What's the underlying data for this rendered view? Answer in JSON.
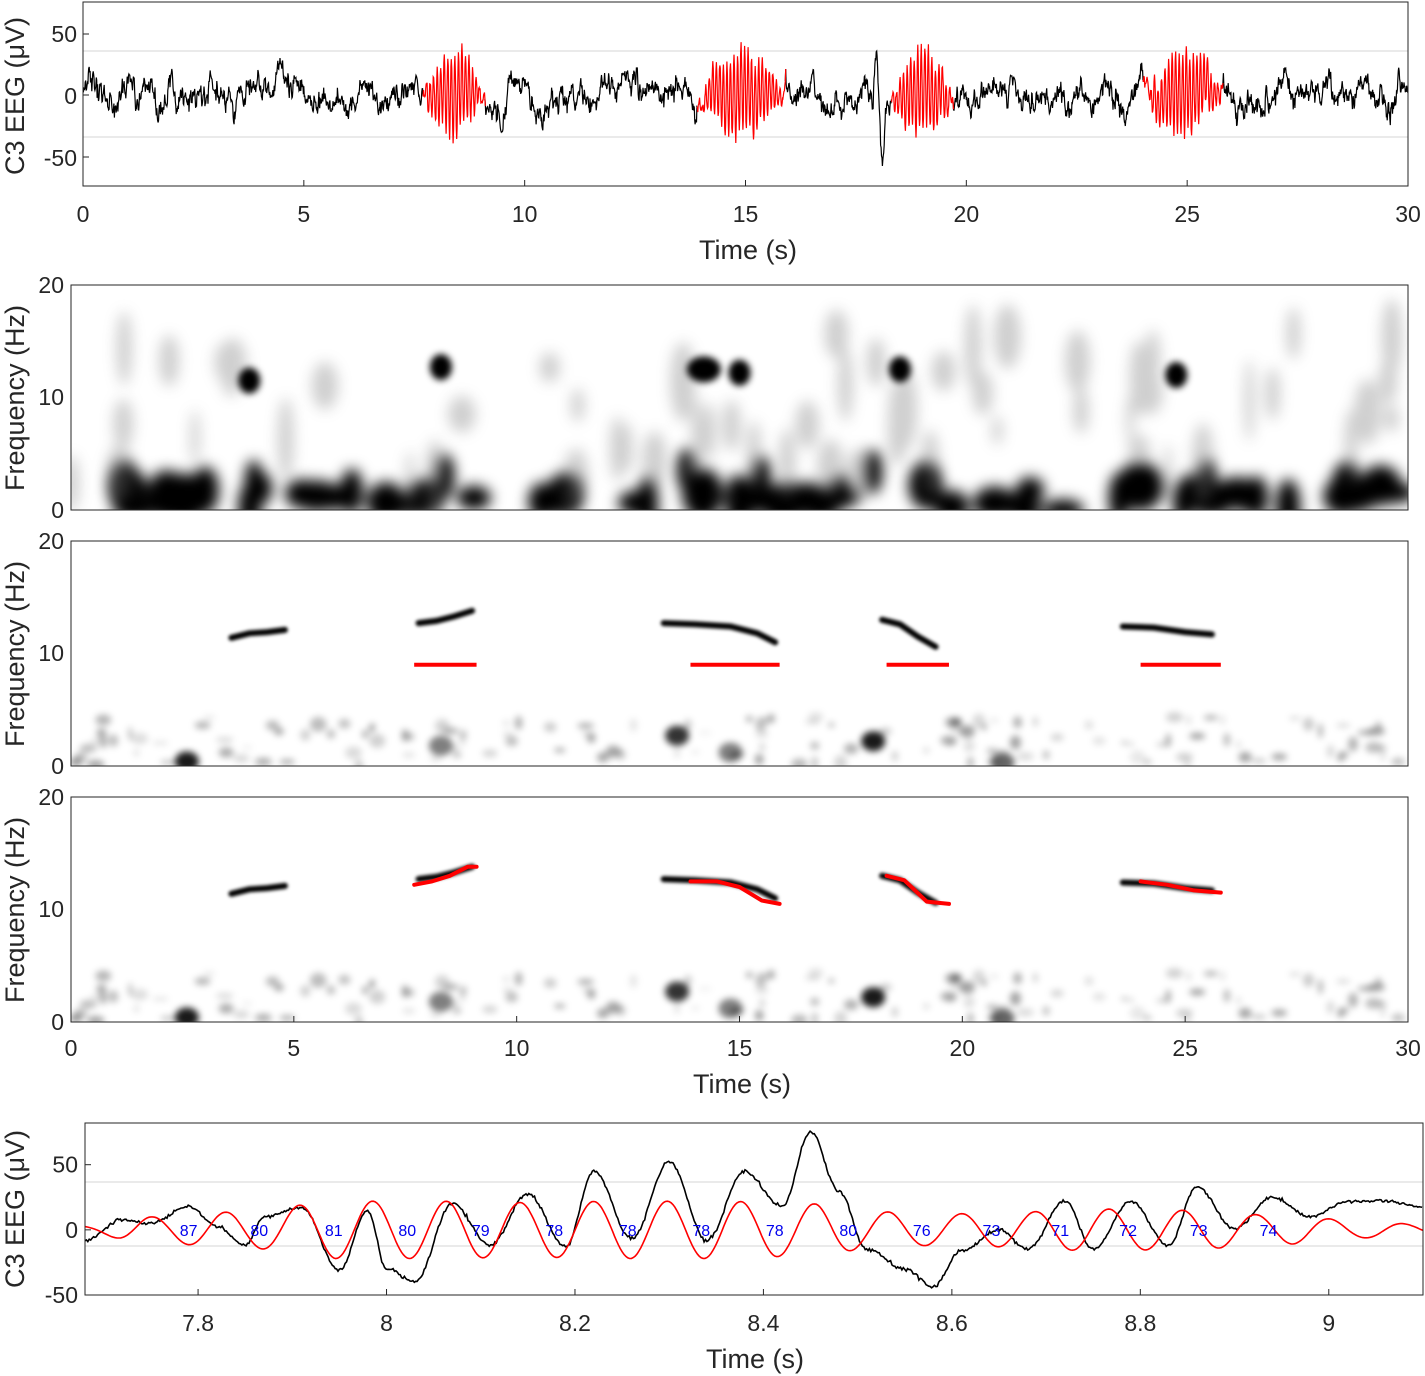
{
  "chart_data": [
    {
      "type": "line",
      "panel": "eeg-30s",
      "ylabel": "C3 EEG (μV)",
      "xlabel": "Time (s)",
      "xlim": [
        0,
        30
      ],
      "ylim": [
        -75,
        75
      ],
      "xticks": [
        "0",
        "5",
        "10",
        "15",
        "20",
        "25",
        "30"
      ],
      "yticks": [
        "50",
        "0",
        "-50"
      ],
      "threshold_lines": [
        35,
        -35
      ],
      "grid": false,
      "series": [
        {
          "color": "#000000",
          "segments": [
            [
              0,
              7.7
            ],
            [
              9.1,
              13.9
            ],
            [
              15.9,
              18.3
            ],
            [
              19.7,
              24.0
            ],
            [
              25.8,
              30
            ]
          ]
        },
        {
          "color": "#ff0000",
          "segments": [
            [
              7.7,
              9.1
            ],
            [
              13.9,
              15.9
            ],
            [
              18.3,
              19.7
            ],
            [
              24.0,
              25.8
            ]
          ]
        }
      ]
    },
    {
      "type": "heatmap",
      "panel": "spectrogram",
      "ylabel": "Frequency (Hz)",
      "xlim": [
        0,
        30
      ],
      "ylim": [
        0,
        20
      ],
      "yticks": [
        "20",
        "10",
        "0"
      ],
      "colormap": "gray-inverted",
      "blobs": [
        {
          "t": 4.0,
          "f": 11.5
        },
        {
          "t": 8.3,
          "f": 12.7
        },
        {
          "t": 14.2,
          "f": 12.5
        },
        {
          "t": 15.0,
          "f": 12.2
        },
        {
          "t": 18.6,
          "f": 12.5
        },
        {
          "t": 24.8,
          "f": 12.0
        }
      ]
    },
    {
      "type": "heatmap",
      "panel": "ridge-detection",
      "ylabel": "Frequency (Hz)",
      "xlim": [
        0,
        30
      ],
      "ylim": [
        0,
        20
      ],
      "yticks": [
        "20",
        "10",
        "0"
      ],
      "detections": [
        {
          "start": 7.7,
          "end": 9.1,
          "f": 9.0
        },
        {
          "start": 13.9,
          "end": 15.9,
          "f": 9.0
        },
        {
          "start": 18.3,
          "end": 19.7,
          "f": 9.0
        },
        {
          "start": 24.0,
          "end": 25.8,
          "f": 9.0
        }
      ],
      "ridges": [
        {
          "t": [
            3.6,
            4.0,
            4.4,
            4.8
          ],
          "f": [
            11.4,
            11.8,
            11.9,
            12.1
          ]
        },
        {
          "t": [
            7.8,
            8.2,
            8.6,
            9.0
          ],
          "f": [
            12.7,
            12.9,
            13.3,
            13.8
          ]
        },
        {
          "t": [
            13.3,
            14.0,
            14.8,
            15.4,
            15.8
          ],
          "f": [
            12.7,
            12.6,
            12.4,
            11.8,
            11.0
          ]
        },
        {
          "t": [
            18.2,
            18.6,
            19.0,
            19.4
          ],
          "f": [
            13.0,
            12.6,
            11.5,
            10.6
          ]
        },
        {
          "t": [
            23.6,
            24.3,
            25.0,
            25.6
          ],
          "f": [
            12.4,
            12.3,
            11.9,
            11.7
          ]
        }
      ]
    },
    {
      "type": "heatmap",
      "panel": "ridge-tracking",
      "ylabel": "Frequency (Hz)",
      "xlabel": "Time (s)",
      "xlim": [
        0,
        30
      ],
      "ylim": [
        0,
        20
      ],
      "xticks": [
        "0",
        "5",
        "10",
        "15",
        "20",
        "25",
        "30"
      ],
      "yticks": [
        "20",
        "10",
        "0"
      ],
      "tracks": [
        {
          "t": [
            7.7,
            8.1,
            8.5,
            8.9,
            9.1
          ],
          "f": [
            12.2,
            12.5,
            13.0,
            13.8,
            13.8
          ]
        },
        {
          "t": [
            13.9,
            14.5,
            15.0,
            15.5,
            15.9
          ],
          "f": [
            12.5,
            12.5,
            12.0,
            10.8,
            10.5
          ]
        },
        {
          "t": [
            18.3,
            18.7,
            19.2,
            19.7
          ],
          "f": [
            13.0,
            12.6,
            10.7,
            10.5
          ]
        },
        {
          "t": [
            24.0,
            24.6,
            25.2,
            25.8
          ],
          "f": [
            12.5,
            12.2,
            11.7,
            11.5
          ]
        }
      ]
    },
    {
      "type": "line",
      "panel": "eeg-zoom",
      "ylabel": "C3 EEG (μV)",
      "xlabel": "Time (s)",
      "xlim": [
        7.68,
        9.1
      ],
      "ylim": [
        -50,
        82
      ],
      "xticks": [
        "7.8",
        "8",
        "8.2",
        "8.4",
        "8.6",
        "8.8",
        "9"
      ],
      "xtick_values": [
        7.8,
        8.0,
        8.2,
        8.4,
        8.6,
        8.8,
        9.0
      ],
      "yticks": [
        "50",
        "0",
        "-50"
      ],
      "ytick_values": [
        50,
        0,
        -50
      ],
      "threshold_lines": [
        35,
        -35
      ],
      "series": [
        {
          "color": "#000000",
          "x": [
            7.68,
            7.72,
            7.75,
            7.79,
            7.82,
            7.85,
            7.87,
            7.91,
            7.95,
            7.98,
            8.0,
            8.03,
            8.07,
            8.11,
            8.15,
            8.19,
            8.22,
            8.26,
            8.3,
            8.34,
            8.38,
            8.42,
            8.45,
            8.48,
            8.51,
            8.55,
            8.58,
            8.61,
            8.65,
            8.68,
            8.72,
            8.75,
            8.79,
            8.83,
            8.86,
            8.9,
            8.94,
            8.98,
            9.02,
            9.06,
            9.1
          ],
          "y": [
            -8,
            8,
            5,
            18,
            3,
            -12,
            10,
            17,
            -31,
            15,
            -30,
            -40,
            20,
            -12,
            28,
            -13,
            45,
            -7,
            52,
            -8,
            45,
            18,
            75,
            30,
            -15,
            -30,
            -44,
            -16,
            0,
            -15,
            22,
            -15,
            22,
            -12,
            33,
            1,
            25,
            10,
            22,
            22,
            18
          ]
        },
        {
          "color": "#ff0000",
          "type": "sinusoid",
          "freq_hz": 12.8,
          "phase_t0": 7.79,
          "envelope_x": [
            7.68,
            7.75,
            7.85,
            7.95,
            8.05,
            8.15,
            8.25,
            8.35,
            8.45,
            8.52,
            8.58,
            8.65,
            8.75,
            8.85,
            8.95,
            9.05,
            9.1
          ],
          "envelope_y": [
            3,
            10,
            14,
            22,
            22,
            21,
            22,
            22,
            20,
            14,
            12,
            13,
            16,
            15,
            11,
            6,
            4
          ]
        }
      ],
      "annotations": [
        {
          "x": 7.79,
          "text": "87"
        },
        {
          "x": 7.865,
          "text": "80"
        },
        {
          "x": 7.944,
          "text": "81"
        },
        {
          "x": 8.022,
          "text": "80"
        },
        {
          "x": 8.1,
          "text": "79"
        },
        {
          "x": 8.178,
          "text": "78"
        },
        {
          "x": 8.256,
          "text": "78"
        },
        {
          "x": 8.334,
          "text": "78"
        },
        {
          "x": 8.412,
          "text": "78"
        },
        {
          "x": 8.49,
          "text": "80"
        },
        {
          "x": 8.568,
          "text": "76"
        },
        {
          "x": 8.642,
          "text": "73"
        },
        {
          "x": 8.715,
          "text": "71"
        },
        {
          "x": 8.787,
          "text": "72"
        },
        {
          "x": 8.862,
          "text": "73"
        },
        {
          "x": 8.936,
          "text": "74"
        }
      ]
    }
  ]
}
